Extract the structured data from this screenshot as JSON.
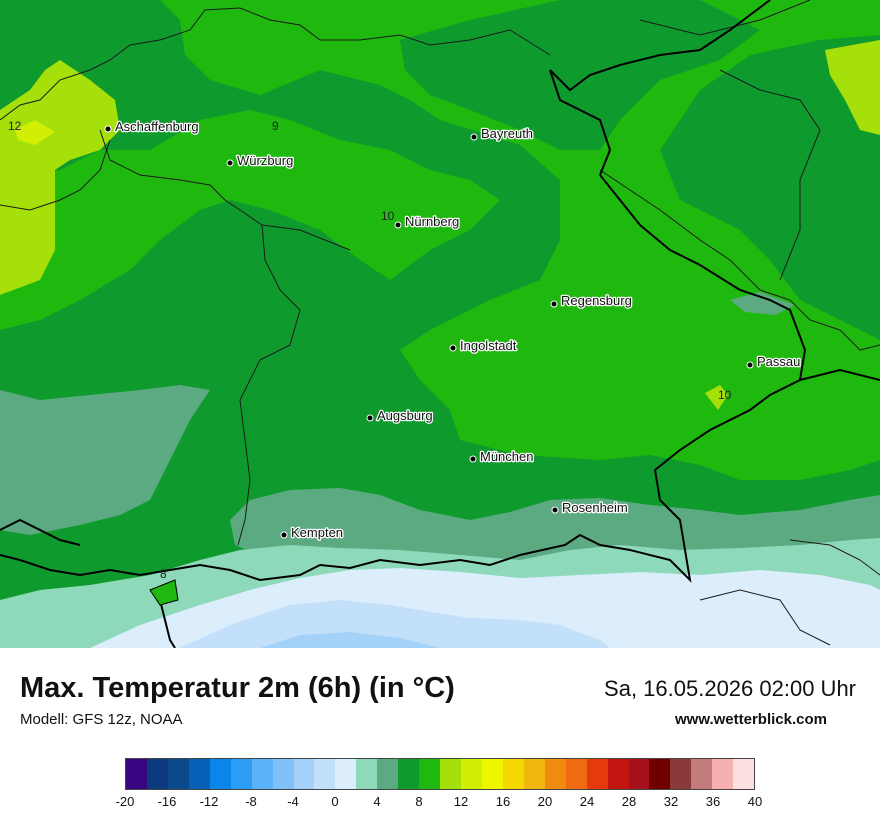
{
  "title": "Max. Temperatur 2m (6h) (in °C)",
  "model": "Modell: GFS 12z, NOAA",
  "datetime": "Sa, 16.05.2026 02:00 Uhr",
  "website": "www.wetterblick.com",
  "cities": [
    {
      "name": "Aschaffenburg"
    },
    {
      "name": "Würzburg"
    },
    {
      "name": "Bayreuth"
    },
    {
      "name": "Nürnberg"
    },
    {
      "name": "Regensburg"
    },
    {
      "name": "Ingolstadt"
    },
    {
      "name": "Passau"
    },
    {
      "name": "Augsburg"
    },
    {
      "name": "München"
    },
    {
      "name": "Rosenheim"
    },
    {
      "name": "Kempten"
    }
  ],
  "contour_labels": [
    "12",
    "9",
    "10",
    "10",
    "8"
  ],
  "legend": {
    "colors": [
      "#3a0580",
      "#0d3a7e",
      "#0b4a8d",
      "#0860b8",
      "#0a85e8",
      "#2d9df5",
      "#5bb2f6",
      "#80c2f7",
      "#a3d1f8",
      "#c3e0fa",
      "#dcedfc",
      "#8fd9bb",
      "#5caa82",
      "#0f9a2e",
      "#1fb80f",
      "#a6e00a",
      "#d0ef05",
      "#eef700",
      "#f4d800",
      "#f1b70c",
      "#f08b0e",
      "#ef6b12",
      "#e63a0d",
      "#c2150f",
      "#a5121b",
      "#700000",
      "#8b3a3a",
      "#c37b7b",
      "#f5b1b1",
      "#fde0e0"
    ],
    "tick_labels": [
      "-20",
      "-16",
      "-12",
      "-8",
      "-4",
      "0",
      "4",
      "8",
      "12",
      "16",
      "20",
      "24",
      "28",
      "32",
      "36",
      "40"
    ]
  }
}
